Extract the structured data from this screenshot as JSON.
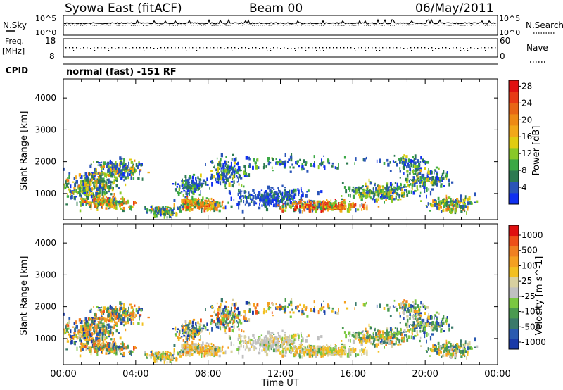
{
  "header": {
    "station": "Syowa East (fitACF)",
    "beam": "Beam 00",
    "date": "06/May/2011"
  },
  "nsky_panel": {
    "left_label": "N.Sky",
    "right_label": "N.Search",
    "right_ticks": [
      "10^5",
      "10^0"
    ]
  },
  "freq_panel": {
    "left_label_1": "Freq.",
    "left_label_2": "[MHz]",
    "left_ticks": [
      "18",
      "8"
    ],
    "right_label": "Nave",
    "right_ticks": [
      "60",
      "0"
    ]
  },
  "cpid": {
    "label": "CPID",
    "value": "normal (fast) -151 RF"
  },
  "chart_data": [
    {
      "type": "heatmap",
      "name": "power",
      "ylabel": "Slant Range [km]",
      "xlabel": "Time UT",
      "ylim": [
        180,
        4600
      ],
      "y_ticks": [
        1000,
        2000,
        3000,
        4000
      ],
      "x_ticks": [
        "00:00",
        "04:00",
        "08:00",
        "12:00",
        "16:00",
        "20:00",
        "00:00"
      ],
      "colorbar": {
        "label": "Power [dB]",
        "tick_labels": [
          "4",
          "8",
          "12",
          "16",
          "20",
          "24",
          "28"
        ],
        "colors": [
          "#1030f0",
          "#2a55b8",
          "#2c7a50",
          "#3ba845",
          "#88c828",
          "#e0cc10",
          "#f2a818",
          "#ee8a14",
          "#e86614",
          "#e83a14",
          "#e01010"
        ]
      }
    },
    {
      "type": "heatmap",
      "name": "velocity",
      "ylabel": "Slant Range [km]",
      "xlabel": "Time UT",
      "ylim": [
        180,
        4600
      ],
      "y_ticks": [
        1000,
        2000,
        3000,
        4000
      ],
      "x_ticks": [
        "00:00",
        "04:00",
        "08:00",
        "12:00",
        "16:00",
        "20:00",
        "00:00"
      ],
      "colorbar": {
        "label": "Velocity [m s^-1]",
        "tick_labels": [
          "1000",
          "500",
          "100",
          "25",
          "-25",
          "-100",
          "-500",
          "-1000"
        ],
        "colors": [
          "#1a3aa8",
          "#2a5ab0",
          "#3a7a6a",
          "#4a9a50",
          "#7ac840",
          "#c0c0c0",
          "#d8d0a0",
          "#f2c020",
          "#f4a020",
          "#f08020",
          "#ee5018",
          "#e01010"
        ]
      }
    }
  ]
}
